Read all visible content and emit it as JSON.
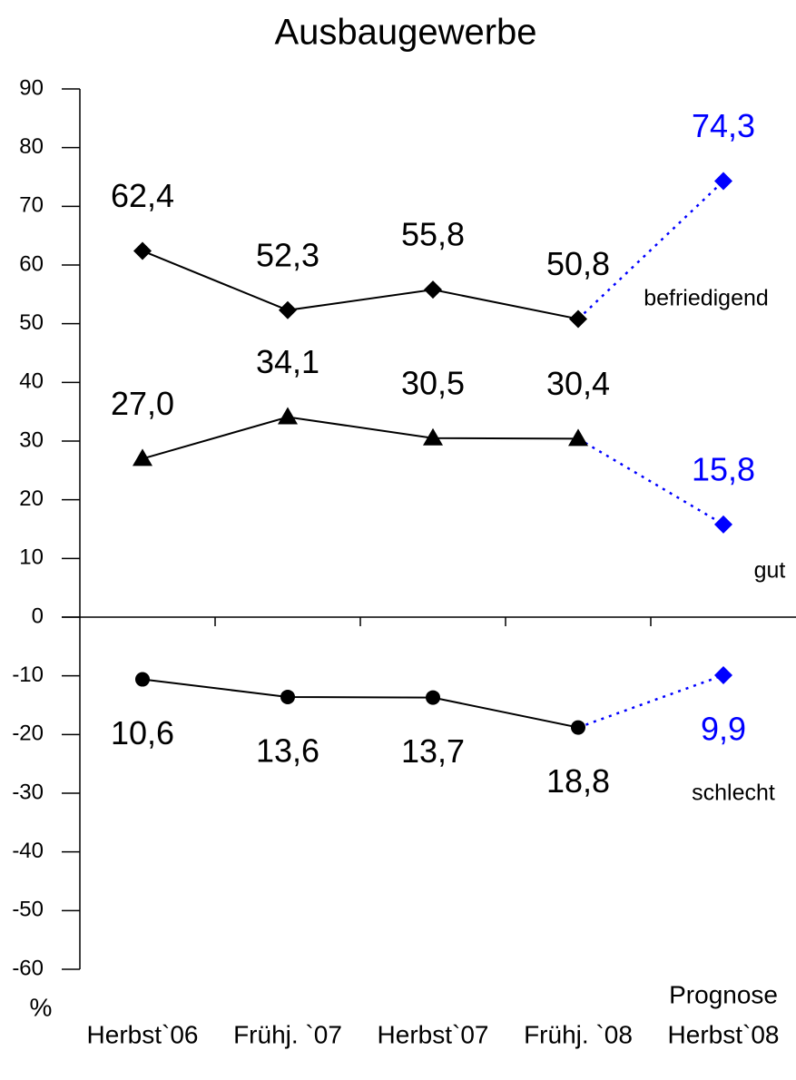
{
  "chart_data": {
    "type": "line",
    "title": "Ausbaugewerbe",
    "y_label": "%",
    "categories": [
      "Herbst`06",
      "Frühj. `07",
      "Herbst`07",
      "Frühj. `08",
      "Herbst`08"
    ],
    "forecast_label": "Prognose",
    "forecast_color": "#0000ff",
    "ylim": [
      -60,
      90
    ],
    "yticks": [
      -60,
      -50,
      -40,
      -30,
      -20,
      -10,
      0,
      10,
      20,
      30,
      40,
      50,
      60,
      70,
      80,
      90
    ],
    "series": [
      {
        "name": "befriedigend",
        "color": "#000000",
        "marker": "diamond",
        "label_position": "above",
        "values": [
          62.4,
          52.3,
          55.8,
          50.8,
          74.3
        ],
        "value_labels": [
          "62,4",
          "52,3",
          "55,8",
          "50,8",
          "74,3"
        ]
      },
      {
        "name": "gut",
        "color": "#000000",
        "marker": "triangle",
        "label_position": "above",
        "values": [
          27.0,
          34.1,
          30.5,
          30.4,
          15.8
        ],
        "value_labels": [
          "27,0",
          "34,1",
          "30,5",
          "30,4",
          "15,8"
        ]
      },
      {
        "name": "schlecht",
        "color": "#000000",
        "marker": "circle",
        "label_position": "below",
        "values": [
          -10.6,
          -13.6,
          -13.7,
          -18.8,
          -9.9
        ],
        "value_labels": [
          "10,6",
          "13,6",
          "13,7",
          "18,8",
          "9,9"
        ]
      }
    ]
  }
}
